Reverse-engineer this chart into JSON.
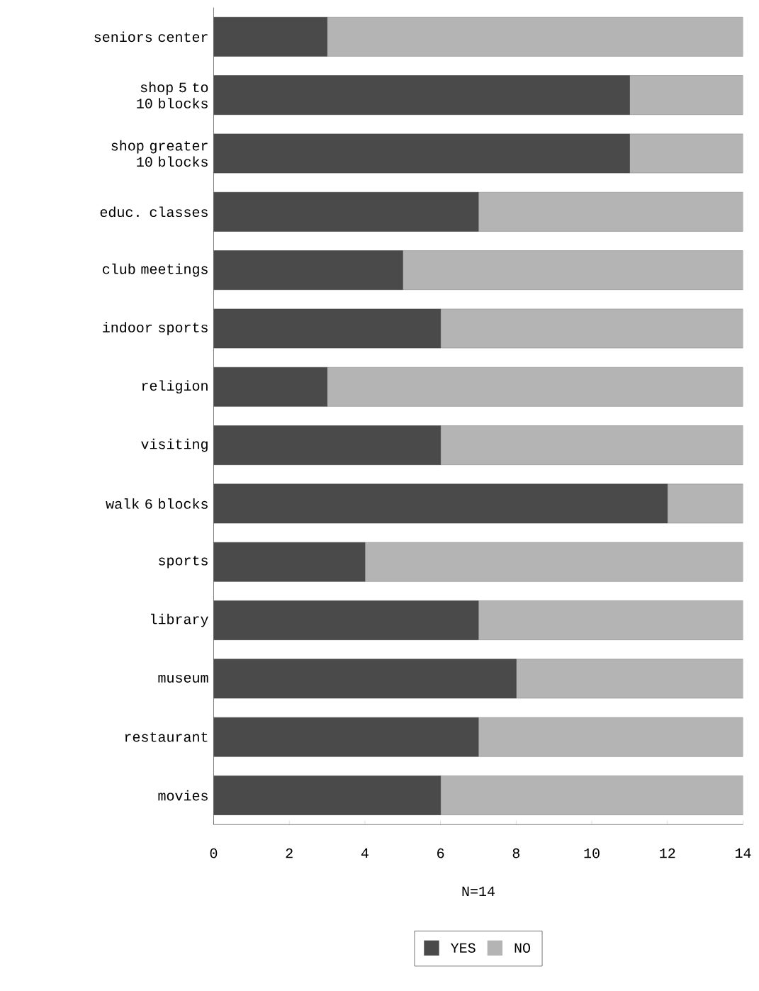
{
  "chart_data": {
    "type": "bar",
    "orientation": "horizontal",
    "stacked": true,
    "xlabel": "N=14",
    "categories": [
      "seniors center",
      "shop 5 to 10 blocks",
      "shop greater 10 blocks",
      "educ. classes",
      "club meetings",
      "indoor sports",
      "religion",
      "visiting",
      "walk 6 blocks",
      "sports",
      "library",
      "museum",
      "restaurant",
      "movies"
    ],
    "series": [
      {
        "name": "YES",
        "color": "#4a4a4a",
        "values": [
          3,
          11,
          11,
          7,
          5,
          6,
          3,
          6,
          12,
          4,
          7,
          8,
          7,
          6
        ]
      },
      {
        "name": "NO",
        "color": "#b4b4b4",
        "values": [
          11,
          3,
          3,
          7,
          9,
          8,
          11,
          8,
          2,
          10,
          7,
          6,
          7,
          8
        ]
      }
    ],
    "xlim": [
      0,
      14
    ],
    "xticks": [
      0,
      2,
      4,
      6,
      8,
      10,
      12,
      14
    ],
    "legend": "bottom"
  }
}
